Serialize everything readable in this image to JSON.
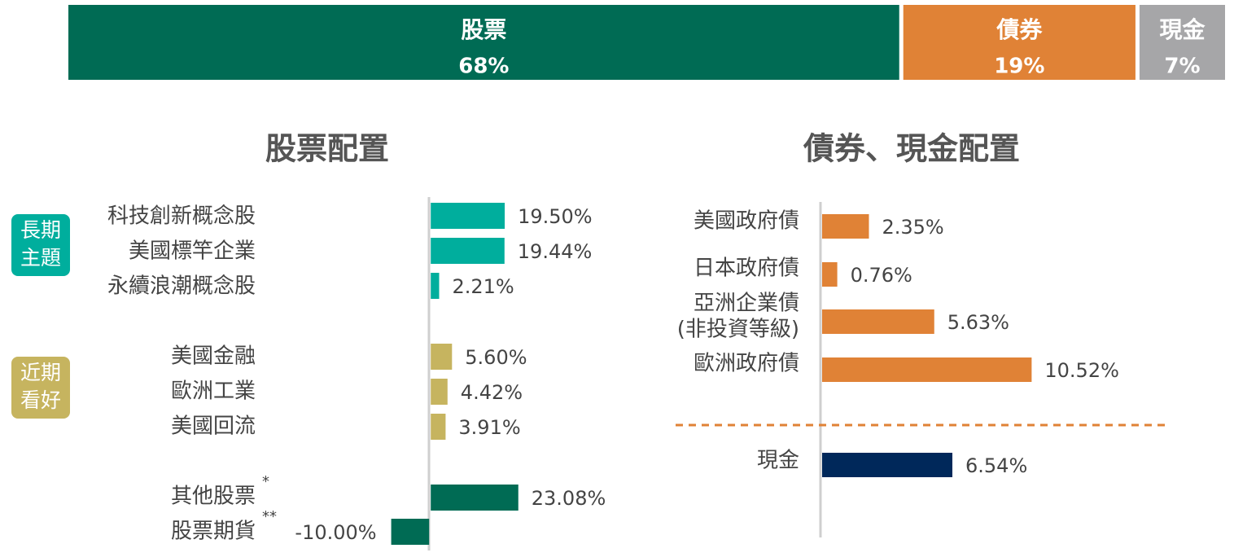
{
  "chart_data": [
    {
      "type": "stacked-bar",
      "series": [
        {
          "name": "股票",
          "color": "#006b54",
          "values": [
            68
          ],
          "value_labels": [
            "68%"
          ]
        },
        {
          "name": "債券",
          "color": "#e08236",
          "values": [
            19
          ],
          "value_labels": [
            "19%"
          ]
        },
        {
          "name": "現金",
          "color": "#a6a6a8",
          "values": [
            7
          ],
          "value_labels": [
            "7%"
          ]
        }
      ]
    },
    {
      "type": "hbar",
      "title": "股票配置",
      "categories": [
        [
          "科技創新概念股"
        ],
        [
          "美國標竿企業"
        ],
        [
          "永續浪潮概念股"
        ],
        [
          "美國金融"
        ],
        [
          "歐洲工業"
        ],
        [
          "美國回流"
        ],
        [
          "其他股票"
        ],
        [
          "股票期貨"
        ]
      ],
      "values": [
        19.5,
        19.44,
        2.21,
        5.6,
        4.42,
        3.91,
        23.08,
        -10
      ],
      "value_labels": [
        "19.50%",
        "19.44%",
        "2.21%",
        "5.60%",
        "4.42%",
        "3.91%",
        "23.08%",
        "-10.00%"
      ],
      "colors": [
        "#00ae9d",
        "#00ae9d",
        "#00ae9d",
        "#c6b45f",
        "#c6b45f",
        "#c6b45f",
        "#006b54",
        "#006b54"
      ],
      "notes": [
        null,
        null,
        null,
        null,
        null,
        null,
        "*",
        "**"
      ],
      "groups": [
        {
          "label": [
            "長期",
            "主題"
          ],
          "color": "#00ae9d"
        },
        {
          "label": [
            "近期",
            "看好"
          ],
          "color": "#c6b45f"
        }
      ],
      "xlim": [
        -20,
        30
      ]
    },
    {
      "type": "hbar",
      "title": "債券、現金配置",
      "categories": [
        [
          "美國政府債"
        ],
        [
          "日本政府債"
        ],
        [
          "亞洲企業債",
          "(非投資等級)"
        ],
        [
          "歐洲政府債"
        ],
        [
          "現金"
        ]
      ],
      "values": [
        2.35,
        0.76,
        5.63,
        10.52,
        6.54
      ],
      "value_labels": [
        "2.35%",
        "0.76%",
        "5.63%",
        "10.52%",
        "6.54%"
      ],
      "colors": [
        "#e08236",
        "#e08236",
        "#e08236",
        "#e08236",
        "#00285a"
      ],
      "xlim": [
        0,
        15
      ]
    }
  ]
}
